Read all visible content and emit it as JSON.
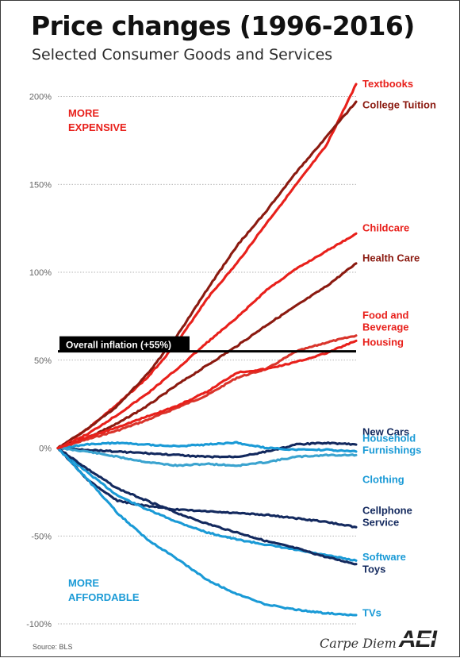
{
  "title": "Price changes",
  "title_years": "(1996-2016)",
  "subtitle": "Selected Consumer Goods and Services",
  "source": "Source: BLS",
  "brand": {
    "blog": "Carpe Diem",
    "logo_text": "AEI"
  },
  "colors": {
    "expensive": "#e8201b",
    "dark_red": "#8b1a10",
    "dark_blue": "#13295e",
    "light_blue": "#1a9ad6",
    "mid_blue": "#3aa3cf",
    "inflation": "#000000",
    "grid": "#9a9a9a"
  },
  "chart_data": {
    "type": "line",
    "title": "Price changes (1996-2016)",
    "subtitle": "Selected Consumer Goods and Services",
    "xlabel": "",
    "ylabel": "",
    "x": [
      1996,
      1998,
      2000,
      2002,
      2004,
      2006,
      2008,
      2010,
      2012,
      2014,
      2016
    ],
    "ylim": [
      -100,
      210
    ],
    "yticks": [
      -100,
      -50,
      0,
      50,
      100,
      150,
      200
    ],
    "ytick_labels": [
      "-100%",
      "-50%",
      "0%",
      "50%",
      "100%",
      "150%",
      "200%"
    ],
    "grid": "horizontal dotted",
    "legend": "labels at line ends (right)",
    "reference_line": {
      "label": "Overall inflation (+55%)",
      "value": 55
    },
    "annotations": [
      {
        "text": [
          "MORE",
          "EXPENSIVE"
        ],
        "position": "top-left",
        "color": "#e8201b"
      },
      {
        "text": [
          "MORE",
          "AFFORDABLE"
        ],
        "position": "bottom-left",
        "color": "#1a9ad6"
      }
    ],
    "series": [
      {
        "name": "Textbooks",
        "color": "#e8201b",
        "values": [
          0,
          11,
          25,
          40,
          60,
          85,
          105,
          128,
          150,
          172,
          207
        ]
      },
      {
        "name": "College Tuition",
        "color": "#8b1a10",
        "values": [
          0,
          11,
          24,
          42,
          64,
          90,
          115,
          135,
          157,
          177,
          197
        ]
      },
      {
        "name": "Childcare",
        "color": "#e8201b",
        "values": [
          0,
          8,
          19,
          31,
          45,
          60,
          74,
          90,
          102,
          112,
          122
        ]
      },
      {
        "name": "Health Care",
        "color": "#8b1a10",
        "values": [
          0,
          6,
          14,
          24,
          36,
          47,
          58,
          70,
          81,
          92,
          105
        ]
      },
      {
        "name": "Food and Beverage",
        "color": "#d9342b",
        "values": [
          0,
          5,
          10,
          16,
          23,
          30,
          40,
          45,
          55,
          60,
          64
        ]
      },
      {
        "name": "Housing",
        "color": "#e8201b",
        "values": [
          0,
          6,
          12,
          18,
          24,
          32,
          43,
          45,
          49,
          54,
          61
        ]
      },
      {
        "name": "New Cars",
        "color": "#13295e",
        "values": [
          0,
          -1,
          -2,
          -3,
          -4,
          -5,
          -5,
          -2,
          2,
          3,
          2
        ]
      },
      {
        "name": "Household Furnishings",
        "color": "#1a9ad6",
        "values": [
          0,
          2,
          3,
          2,
          1,
          2,
          3,
          0,
          -1,
          -1,
          -2
        ]
      },
      {
        "name": "Clothing",
        "color": "#3aa3cf",
        "values": [
          0,
          -2,
          -5,
          -8,
          -10,
          -9,
          -10,
          -8,
          -5,
          -4,
          -4
        ]
      },
      {
        "name": "Cellphone Service",
        "color": "#13295e",
        "values": [
          0,
          -18,
          -30,
          -33,
          -35,
          -36,
          -37,
          -38,
          -40,
          -42,
          -45
        ]
      },
      {
        "name": "Software",
        "color": "#1a9ad6",
        "values": [
          0,
          -14,
          -27,
          -35,
          -42,
          -48,
          -52,
          -55,
          -58,
          -61,
          -64
        ]
      },
      {
        "name": "Toys",
        "color": "#13295e",
        "values": [
          0,
          -12,
          -23,
          -30,
          -37,
          -43,
          -48,
          -53,
          -57,
          -62,
          -66
        ]
      },
      {
        "name": "TVs",
        "color": "#1a9ad6",
        "values": [
          0,
          -18,
          -37,
          -52,
          -63,
          -75,
          -83,
          -89,
          -92,
          -94,
          -95
        ]
      }
    ],
    "labels": [
      {
        "series": "Textbooks",
        "lines": [
          "Textbooks"
        ],
        "color": "#e8201b",
        "value": 207
      },
      {
        "series": "College Tuition",
        "lines": [
          "College Tuition"
        ],
        "color": "#8b1a10",
        "value": 195
      },
      {
        "series": "Childcare",
        "lines": [
          "Childcare"
        ],
        "color": "#e8201b",
        "value": 125
      },
      {
        "series": "Health Care",
        "lines": [
          "Health Care"
        ],
        "color": "#8b1a10",
        "value": 108
      },
      {
        "series": "Food and Beverage",
        "lines": [
          "Food and",
          "Beverage"
        ],
        "color": "#e8201b",
        "value": 72
      },
      {
        "series": "Housing",
        "lines": [
          "Housing"
        ],
        "color": "#e8201b",
        "value": 60
      },
      {
        "series": "New Cars",
        "lines": [
          "New Cars"
        ],
        "color": "#13295e",
        "value": 9
      },
      {
        "series": "Household Furnishings",
        "lines": [
          "Household",
          "Furnishings"
        ],
        "color": "#1a9ad6",
        "value": 2
      },
      {
        "series": "Clothing",
        "lines": [
          "Clothing"
        ],
        "color": "#1a9ad6",
        "value": -18
      },
      {
        "series": "Cellphone Service",
        "lines": [
          "Cellphone",
          "Service"
        ],
        "color": "#13295e",
        "value": -39
      },
      {
        "series": "Software",
        "lines": [
          "Software"
        ],
        "color": "#1a9ad6",
        "value": -62
      },
      {
        "series": "Toys",
        "lines": [
          "Toys"
        ],
        "color": "#13295e",
        "value": -69
      },
      {
        "series": "TVs",
        "lines": [
          "TVs"
        ],
        "color": "#1a9ad6",
        "value": -94
      }
    ]
  }
}
